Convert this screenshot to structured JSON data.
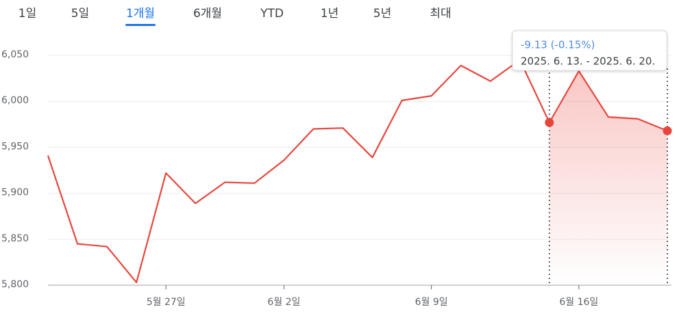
{
  "tabs": {
    "items": [
      "1일",
      "5일",
      "1개월",
      "6개월",
      "YTD",
      "1년",
      "5년",
      "최대"
    ],
    "selected": 2
  },
  "chart_data": {
    "type": "line",
    "categories": [
      null,
      null,
      null,
      null,
      "5월 27일",
      null,
      null,
      null,
      "6월 2일",
      null,
      null,
      null,
      null,
      "6월 9일",
      null,
      null,
      null,
      null,
      "6월 16일",
      null,
      null,
      null
    ],
    "series": [
      {
        "color": "#e8453c",
        "values": [
          5941,
          5845,
          5842,
          5803,
          5922,
          5889,
          5912,
          5911,
          5936,
          5970,
          5971,
          5939,
          6001,
          6006,
          6039,
          6022,
          6045,
          5977,
          6033,
          5983,
          5981,
          5968
        ]
      }
    ],
    "ylim": [
      5800,
      6050
    ],
    "yticks": [
      {
        "value": 5800,
        "label": "5,800"
      },
      {
        "value": 5850,
        "label": "5,850"
      },
      {
        "value": 5900,
        "label": "5,900"
      },
      {
        "value": 5950,
        "label": "5,950"
      },
      {
        "value": 6000,
        "label": "6,000"
      },
      {
        "value": 6050,
        "label": "6,050"
      }
    ],
    "grid": true,
    "selection": [
      17,
      21
    ],
    "tooltip": {
      "change": "-9.13 (-0.15%)",
      "range": "2025. 6. 13. - 2025. 6. 20."
    }
  }
}
